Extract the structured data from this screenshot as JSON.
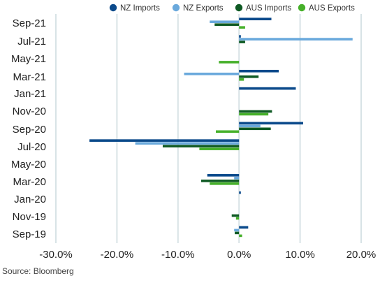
{
  "chart_data": {
    "type": "bar",
    "orientation": "horizontal",
    "categories": [
      "Sep-19",
      "Nov-19",
      "Jan-20",
      "Mar-20",
      "May-20",
      "Jul-20",
      "Sep-20",
      "Nov-20",
      "Jan-21",
      "Mar-21",
      "May-21",
      "Jul-21",
      "Sep-21"
    ],
    "series": [
      {
        "name": "NZ Imports",
        "color": "#0b4a8b",
        "values": [
          1.5,
          0.0,
          0.3,
          -5.2,
          0.0,
          -24.5,
          10.5,
          0.0,
          9.3,
          6.5,
          0.0,
          0.3,
          5.3
        ]
      },
      {
        "name": "NZ Exports",
        "color": "#6aa9dc",
        "values": [
          -0.8,
          0.0,
          0.0,
          -0.8,
          0.0,
          -17.0,
          3.5,
          0.0,
          0.0,
          -9.0,
          0.0,
          18.6,
          -4.8
        ]
      },
      {
        "name": "AUS Imports",
        "color": "#0f5a24",
        "values": [
          -0.7,
          -1.2,
          0.0,
          -6.2,
          0.0,
          -12.5,
          5.2,
          5.4,
          0.0,
          3.2,
          0.0,
          1.0,
          -4.0
        ]
      },
      {
        "name": "AUS Exports",
        "color": "#46b02a",
        "values": [
          0.5,
          -0.5,
          0.0,
          -4.8,
          0.0,
          -6.5,
          -3.8,
          4.8,
          0.0,
          0.8,
          -3.3,
          0.0,
          1.0
        ]
      }
    ],
    "xlim": [
      -30,
      20
    ],
    "xticks": [
      "-30.0%",
      "-20.0%",
      "-10.0%",
      "0.0%",
      "10.0%",
      "20.0%"
    ],
    "ytick_labels": [
      "Sep-21",
      "Jul-21",
      "May-21",
      "Mar-21",
      "Jan-21",
      "Nov-20",
      "Sep-20",
      "Jul-20",
      "May-20",
      "Mar-20",
      "Jan-20",
      "Nov-19",
      "Sep-19"
    ],
    "grid": "vertical",
    "legend_position": "top",
    "source": "Source: Bloomberg"
  }
}
